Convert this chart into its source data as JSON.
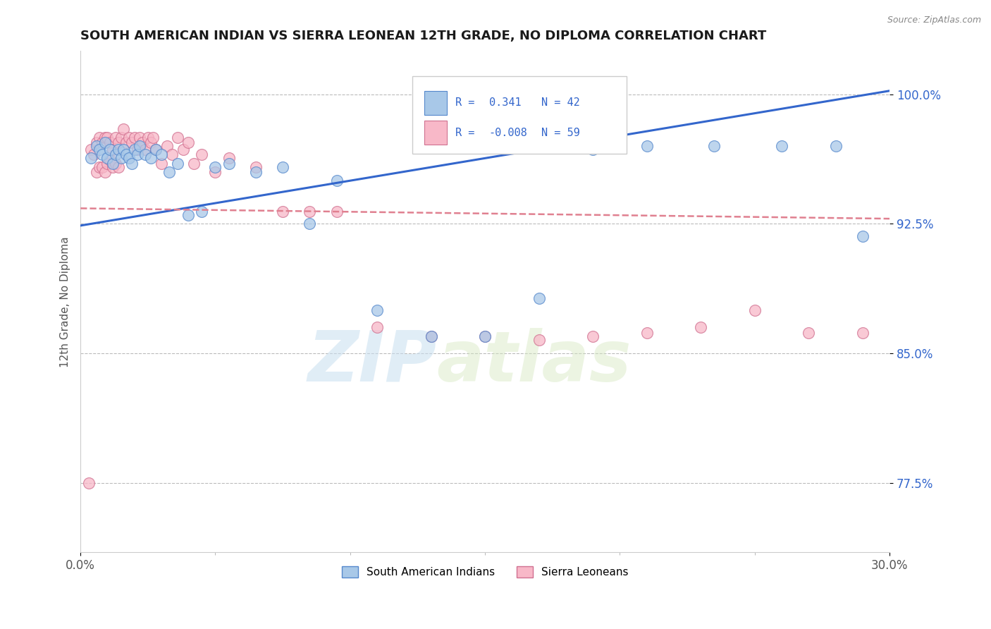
{
  "title": "SOUTH AMERICAN INDIAN VS SIERRA LEONEAN 12TH GRADE, NO DIPLOMA CORRELATION CHART",
  "source": "Source: ZipAtlas.com",
  "ylabel": "12th Grade, No Diploma",
  "yticks": [
    0.775,
    0.85,
    0.925,
    1.0
  ],
  "ytick_labels": [
    "77.5%",
    "85.0%",
    "92.5%",
    "100.0%"
  ],
  "xlim": [
    0.0,
    0.3
  ],
  "ylim": [
    0.735,
    1.025
  ],
  "legend_blue_r": "R =  0.341",
  "legend_blue_n": "N = 42",
  "legend_pink_r": "R = -0.008",
  "legend_pink_n": "N = 59",
  "legend_label_blue": "South American Indians",
  "legend_label_pink": "Sierra Leoneans",
  "watermark_zip": "ZIP",
  "watermark_atlas": "atlas",
  "blue_color": "#a8c8e8",
  "blue_edge_color": "#5588cc",
  "pink_color": "#f8b8c8",
  "pink_edge_color": "#d07090",
  "blue_line_color": "#3366cc",
  "pink_line_color": "#e08090",
  "blue_scatter_x": [
    0.004,
    0.006,
    0.007,
    0.008,
    0.009,
    0.01,
    0.011,
    0.012,
    0.013,
    0.014,
    0.015,
    0.016,
    0.017,
    0.018,
    0.019,
    0.02,
    0.021,
    0.022,
    0.024,
    0.026,
    0.028,
    0.03,
    0.033,
    0.036,
    0.04,
    0.045,
    0.05,
    0.055,
    0.065,
    0.075,
    0.085,
    0.095,
    0.11,
    0.13,
    0.15,
    0.17,
    0.19,
    0.21,
    0.235,
    0.26,
    0.28,
    0.29
  ],
  "blue_scatter_y": [
    0.963,
    0.97,
    0.968,
    0.965,
    0.972,
    0.963,
    0.968,
    0.96,
    0.965,
    0.968,
    0.963,
    0.968,
    0.965,
    0.963,
    0.96,
    0.968,
    0.965,
    0.97,
    0.965,
    0.963,
    0.968,
    0.965,
    0.955,
    0.96,
    0.93,
    0.932,
    0.958,
    0.96,
    0.955,
    0.958,
    0.925,
    0.95,
    0.875,
    0.86,
    0.86,
    0.882,
    0.968,
    0.97,
    0.97,
    0.97,
    0.97,
    0.918
  ],
  "pink_scatter_x": [
    0.003,
    0.004,
    0.005,
    0.006,
    0.007,
    0.008,
    0.009,
    0.01,
    0.011,
    0.012,
    0.013,
    0.014,
    0.015,
    0.016,
    0.017,
    0.018,
    0.019,
    0.02,
    0.021,
    0.022,
    0.023,
    0.024,
    0.025,
    0.026,
    0.027,
    0.028,
    0.03,
    0.032,
    0.034,
    0.036,
    0.038,
    0.04,
    0.042,
    0.045,
    0.05,
    0.055,
    0.065,
    0.075,
    0.085,
    0.095,
    0.11,
    0.13,
    0.15,
    0.17,
    0.19,
    0.21,
    0.23,
    0.25,
    0.27,
    0.29,
    0.006,
    0.007,
    0.008,
    0.009,
    0.01,
    0.011,
    0.012,
    0.013,
    0.014
  ],
  "pink_scatter_y": [
    0.775,
    0.968,
    0.965,
    0.972,
    0.975,
    0.972,
    0.975,
    0.975,
    0.972,
    0.968,
    0.975,
    0.972,
    0.975,
    0.98,
    0.972,
    0.975,
    0.972,
    0.975,
    0.968,
    0.975,
    0.972,
    0.968,
    0.975,
    0.972,
    0.975,
    0.968,
    0.96,
    0.97,
    0.965,
    0.975,
    0.968,
    0.972,
    0.96,
    0.965,
    0.955,
    0.963,
    0.958,
    0.932,
    0.932,
    0.932,
    0.865,
    0.86,
    0.86,
    0.858,
    0.86,
    0.862,
    0.865,
    0.875,
    0.862,
    0.862,
    0.955,
    0.958,
    0.958,
    0.955,
    0.96,
    0.962,
    0.958,
    0.96,
    0.958
  ],
  "blue_trend_x": [
    0.0,
    0.3
  ],
  "blue_trend_y": [
    0.924,
    1.002
  ],
  "pink_trend_x": [
    0.0,
    0.3
  ],
  "pink_trend_y": [
    0.934,
    0.928
  ]
}
